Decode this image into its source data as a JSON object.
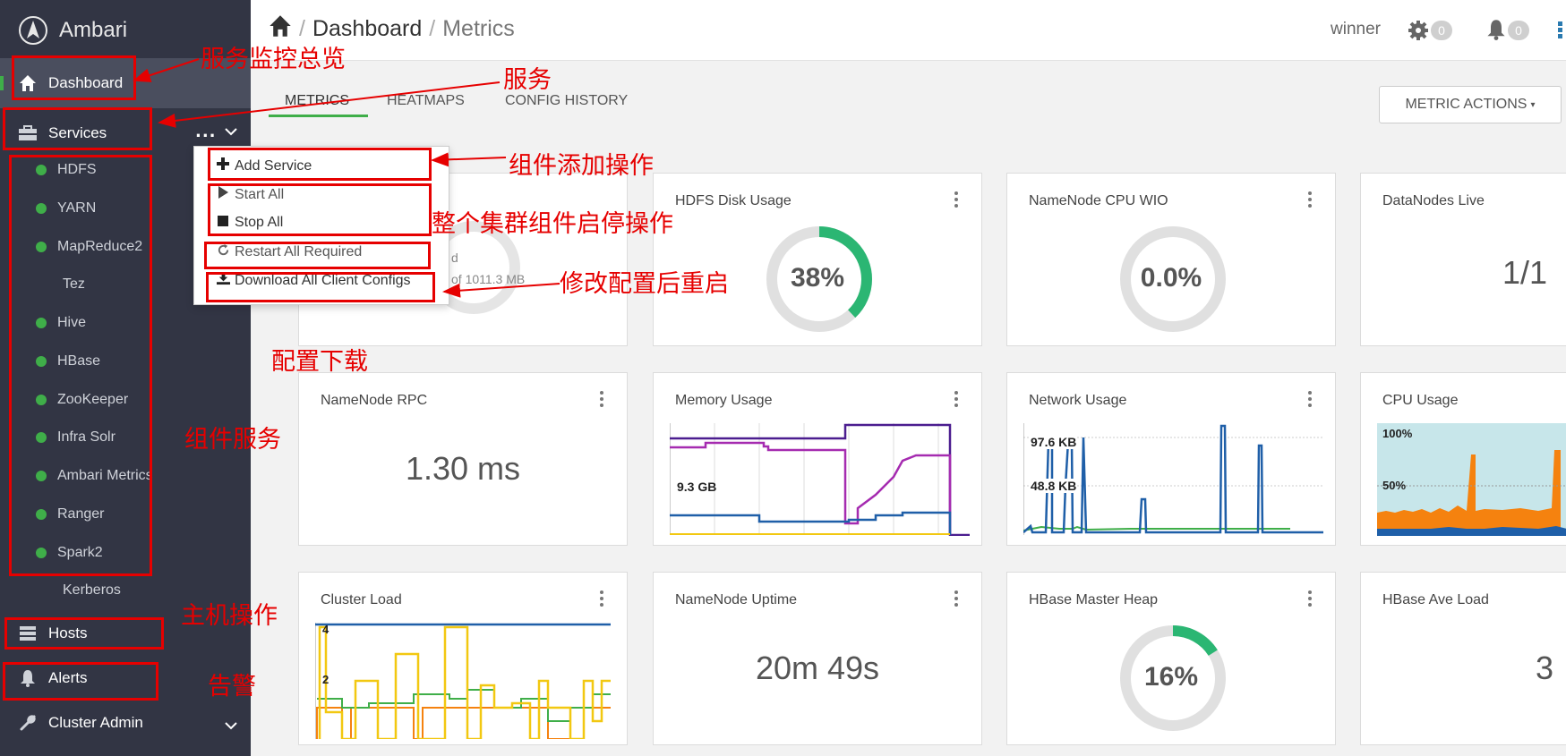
{
  "app": {
    "brand": "Ambari",
    "user": "winner",
    "settings_badge": "0",
    "alerts_badge": "0"
  },
  "breadcrumb": {
    "section": "Dashboard",
    "page": "Metrics"
  },
  "nav": {
    "dashboard": "Dashboard",
    "services": "Services",
    "services_more": "...",
    "hosts": "Hosts",
    "alerts": "Alerts",
    "cluster_admin": "Cluster Admin"
  },
  "services": [
    {
      "name": "HDFS",
      "status": "green"
    },
    {
      "name": "YARN",
      "status": "green"
    },
    {
      "name": "MapReduce2",
      "status": "green"
    },
    {
      "name": "Tez",
      "status": "none"
    },
    {
      "name": "Hive",
      "status": "green"
    },
    {
      "name": "HBase",
      "status": "green"
    },
    {
      "name": "ZooKeeper",
      "status": "green"
    },
    {
      "name": "Infra Solr",
      "status": "green"
    },
    {
      "name": "Ambari Metrics",
      "status": "green"
    },
    {
      "name": "Ranger",
      "status": "green"
    },
    {
      "name": "Spark2",
      "status": "green"
    },
    {
      "name": "Kerberos",
      "status": "none"
    }
  ],
  "tabs": {
    "metrics": "METRICS",
    "heatmaps": "HEATMAPS",
    "config_history": "CONFIG HISTORY"
  },
  "metric_actions": "METRIC ACTIONS",
  "dropdown": {
    "add_service": "Add Service",
    "start_all": "Start All",
    "stop_all": "Stop All",
    "restart_all": "Restart All Required",
    "download_configs": "Download All Client Configs"
  },
  "hidden_card": {
    "partial_label": "d",
    "partial_value": "of 1011.3 MB"
  },
  "cards": {
    "hdfs_disk": {
      "title": "HDFS Disk Usage",
      "value": "38%",
      "percent": 38
    },
    "namenode_cpu": {
      "title": "NameNode CPU WIO",
      "value": "0.0%",
      "percent": 0
    },
    "datanodes": {
      "title": "DataNodes Live",
      "value": "1/1"
    },
    "namenode_rpc": {
      "title": "NameNode RPC",
      "value": "1.30 ms"
    },
    "memory": {
      "title": "Memory Usage",
      "label": "9.3 GB"
    },
    "network": {
      "title": "Network Usage",
      "label_high": "97.6 KB",
      "label_mid": "48.8 KB"
    },
    "cpu": {
      "title": "CPU Usage",
      "label_high": "100%",
      "label_mid": "50%"
    },
    "cluster_load": {
      "title": "Cluster Load",
      "label_high": "4",
      "label_mid": "2"
    },
    "namenode_uptime": {
      "title": "NameNode Uptime",
      "value": "20m 49s"
    },
    "hbase_heap": {
      "title": "HBase Master Heap",
      "value": "16%",
      "percent": 16
    },
    "hbase_load": {
      "title": "HBase Ave Load",
      "value": "3"
    }
  },
  "annotations": {
    "dashboard": "服务监控总览",
    "services": "服务",
    "add_service": "组件添加操作",
    "start_stop": "整个集群组件启停操作",
    "restart": "修改配置后重启",
    "download": "配置下载",
    "component_services": "组件服务",
    "hosts": "主机操作",
    "alerts": "告警"
  },
  "colors": {
    "green": "#3fae49",
    "sidebar": "#323544",
    "annotation": "#e60000",
    "chart_blue": "#1f5fa8",
    "chart_orange": "#f5820f",
    "chart_purple": "#8b1a9e",
    "chart_yellow": "#f2c811"
  }
}
